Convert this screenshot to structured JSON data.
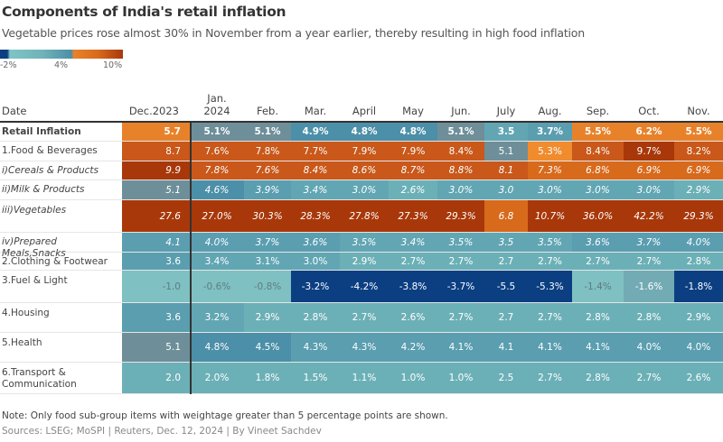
{
  "title": "Components of India's retail inflation",
  "subtitle": "Vegetable prices rose almost 30% in November from a year earlier, thereby resulting in high food inflation",
  "legend": {
    "labels": [
      "-2%",
      "4%",
      "10%"
    ]
  },
  "note": "Note: Only food sub-group items with weightage greater than 5 percentage points are shown.",
  "source": "Sources: LSEG; MoSPI | Reuters, Dec. 12, 2024 | By Vineet Sachdev",
  "chart_data": {
    "type": "heatmap",
    "row_header": "Date",
    "columns": [
      "Dec.2023",
      "Jan.\n2024",
      "Feb.",
      "Mar.",
      "April",
      "May",
      "Jun.",
      "July",
      "Aug.",
      "Sep.",
      "Oct.",
      "Nov."
    ],
    "colors": {
      "negative_strong": "#0b3f82",
      "negative_light": "#7fc0c2",
      "low": "#6cb0b7",
      "mid": "#5a9eb0",
      "high_teal": "#4c8fa8",
      "neutral": "#6e8f99",
      "orange": "#e8822a",
      "orange_dark": "#c9581a",
      "rust": "#a8380a"
    },
    "rows": [
      {
        "label": "Retail Inflation",
        "bold": true,
        "values": [
          "5.7",
          "5.1%",
          "5.1%",
          "4.9%",
          "4.8%",
          "4.8%",
          "5.1%",
          "3.5",
          "3.7%",
          "5.5%",
          "6.2%",
          "5.5%"
        ]
      },
      {
        "label": "1.Food & Beverages",
        "values": [
          "8.7",
          "7.6%",
          "7.8%",
          "7.7%",
          "7.9%",
          "7.9%",
          "8.4%",
          "5.1",
          "5.3%",
          "8.4%",
          "9.7%",
          "8.2%"
        ]
      },
      {
        "label": "i)Cereals & Products",
        "italic": true,
        "values": [
          "9.9",
          "7.8%",
          "7.6%",
          "8.4%",
          "8.6%",
          "8.7%",
          "8.8%",
          "8.1",
          "7.3%",
          "6.8%",
          "6.9%",
          "6.9%"
        ]
      },
      {
        "label": "ii)Milk & Products",
        "italic": true,
        "values": [
          "5.1",
          "4.6%",
          "3.9%",
          "3.4%",
          "3.0%",
          "2.6%",
          "3.0%",
          "3.0",
          "3.0%",
          "3.0%",
          "3.0%",
          "2.9%"
        ]
      },
      {
        "label": "iii)Vegetables",
        "italic": true,
        "values": [
          "27.6",
          "27.0%",
          "30.3%",
          "28.3%",
          "27.8%",
          "27.3%",
          "29.3%",
          "6.8",
          "10.7%",
          "36.0%",
          "42.2%",
          "29.3%"
        ]
      },
      {
        "label": "iv)Prepared Meals,Snacks",
        "italic": true,
        "values": [
          "4.1",
          "4.0%",
          "3.7%",
          "3.6%",
          "3.5%",
          "3.4%",
          "3.5%",
          "3.5",
          "3.5%",
          "3.6%",
          "3.7%",
          "4.0%"
        ]
      },
      {
        "label": "2.Clothing & Footwear",
        "values": [
          "3.6",
          "3.4%",
          "3.1%",
          "3.0%",
          "2.9%",
          "2.7%",
          "2.7%",
          "2.7",
          "2.7%",
          "2.7%",
          "2.7%",
          "2.8%"
        ]
      },
      {
        "label": "3.Fuel & Light",
        "values": [
          "-1.0",
          "-0.6%",
          "-0.8%",
          "-3.2%",
          "-4.2%",
          "-3.8%",
          "-3.7%",
          "-5.5",
          "-5.3%",
          "-1.4%",
          "-1.6%",
          "-1.8%"
        ]
      },
      {
        "label": "4.Housing",
        "values": [
          "3.6",
          "3.2%",
          "2.9%",
          "2.8%",
          "2.7%",
          "2.6%",
          "2.7%",
          "2.7",
          "2.7%",
          "2.8%",
          "2.8%",
          "2.9%"
        ]
      },
      {
        "label": "5.Health",
        "values": [
          "5.1",
          "4.8%",
          "4.5%",
          "4.3%",
          "4.3%",
          "4.2%",
          "4.1%",
          "4.1",
          "4.1%",
          "4.1%",
          "4.0%",
          "4.0%"
        ]
      },
      {
        "label": "6.Transport & Communication",
        "values": [
          "2.0",
          "2.0%",
          "1.8%",
          "1.5%",
          "1.1%",
          "1.0%",
          "1.0%",
          "2.5",
          "2.7%",
          "2.8%",
          "2.7%",
          "2.6%"
        ]
      }
    ]
  }
}
